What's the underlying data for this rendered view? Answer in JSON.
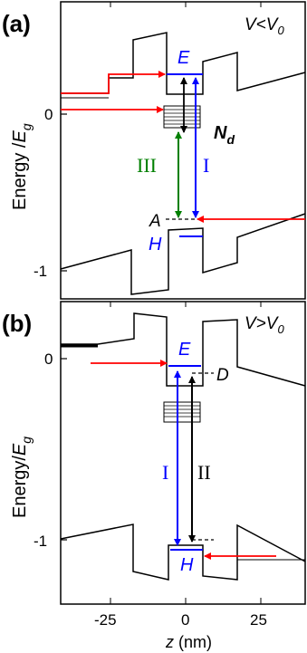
{
  "panels": [
    {
      "id": "a",
      "label": "(a)",
      "condition_prefix": "V<V",
      "condition_sub": "0",
      "ylabel_main": "Energy /",
      "ylabel_E": "E",
      "ylabel_sub": "g",
      "yticks": [
        "0",
        "-1"
      ],
      "level_E": "E",
      "level_H": "H",
      "level_A": "A",
      "donor_main": "N",
      "donor_sub": "d",
      "transition_III": "III",
      "transition_I": "I"
    },
    {
      "id": "b",
      "label": "(b)",
      "condition_prefix": "V>V",
      "condition_sub": "0",
      "ylabel_main": "Energy/",
      "ylabel_E": "E",
      "ylabel_sub": "g",
      "yticks": [
        "0",
        "-1"
      ],
      "level_E": "E",
      "level_H": "H",
      "level_D": "D",
      "transition_I": "I",
      "transition_II": "II"
    }
  ],
  "xaxis": {
    "ticks": [
      "-25",
      "0",
      "25"
    ],
    "label_var": "z",
    "label_unit": " (nm)"
  },
  "colors": {
    "frame": "#000000",
    "red_arrow": "#ff0000",
    "blue_arrow": "#0000ff",
    "green_arrow": "#008000",
    "black_arrow": "#000000"
  }
}
